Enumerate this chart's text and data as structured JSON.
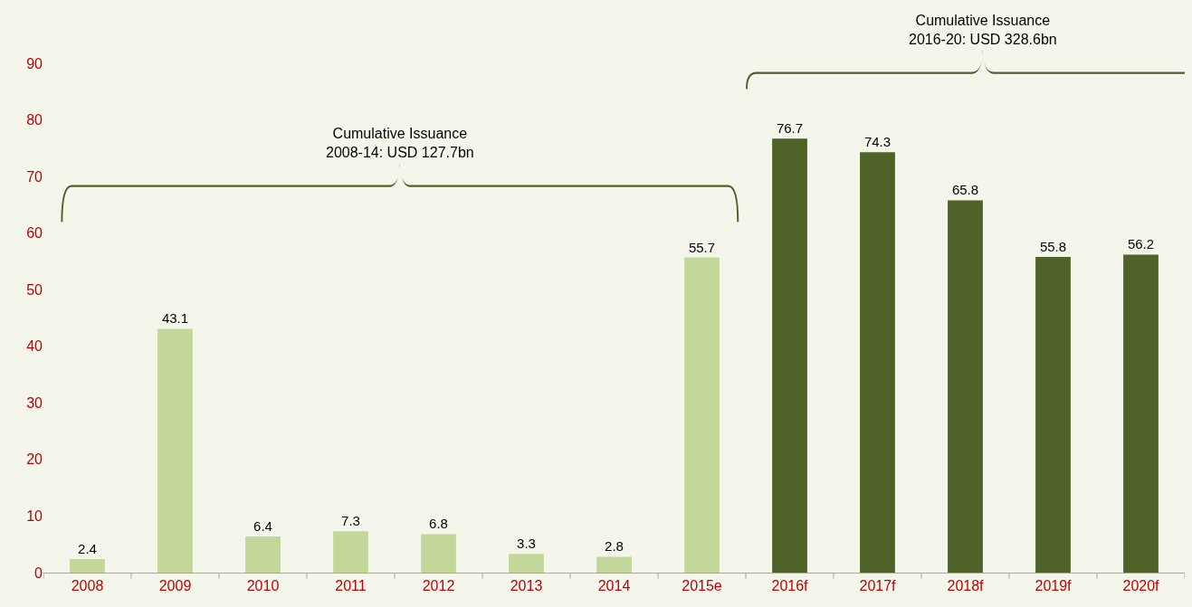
{
  "chart_data": {
    "type": "bar",
    "categories": [
      "2008",
      "2009",
      "2010",
      "2011",
      "2012",
      "2013",
      "2014",
      "2015e",
      "2016f",
      "2017f",
      "2018f",
      "2019f",
      "2020f"
    ],
    "values": [
      2.4,
      43.1,
      6.4,
      7.3,
      6.8,
      3.3,
      2.8,
      55.7,
      76.7,
      74.3,
      65.8,
      55.8,
      56.2
    ],
    "colors": [
      "#c4d79b",
      "#c4d79b",
      "#c4d79b",
      "#c4d79b",
      "#c4d79b",
      "#c4d79b",
      "#c4d79b",
      "#c4d79b",
      "#4f6228",
      "#4f6228",
      "#4f6228",
      "#4f6228",
      "#4f6228"
    ],
    "ylim": [
      0,
      90
    ],
    "yticks": [
      0,
      10,
      20,
      30,
      40,
      50,
      60,
      70,
      80,
      90
    ],
    "data_labels": true,
    "grid": false,
    "annotations": [
      "Cumulative Issuance\n2008-14: USD 127.7bn",
      "Cumulative Issuance\n2016-20: USD 328.6bn"
    ]
  }
}
